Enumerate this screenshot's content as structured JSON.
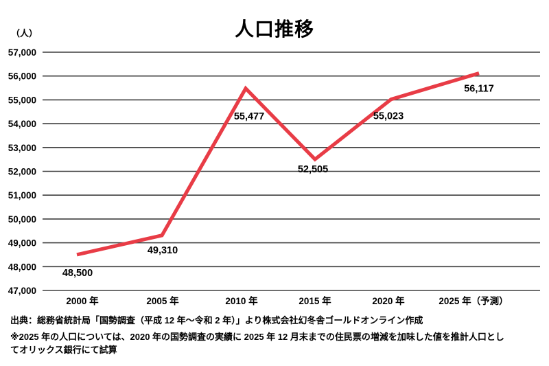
{
  "chart_data": {
    "type": "line",
    "title": "人口推移",
    "ylabel_unit": "（人）",
    "xlabel": "",
    "categories": [
      "2000 年",
      "2005 年",
      "2010 年",
      "2015 年",
      "2020 年",
      "2025 年（予測）"
    ],
    "values": [
      48500,
      49310,
      55477,
      52505,
      55023,
      56117
    ],
    "data_labels": [
      "48,500",
      "49,310",
      "55,477",
      "52,505",
      "55,023",
      "56,117"
    ],
    "ylim": [
      47000,
      57000
    ],
    "ytick_step": 1000,
    "ytick_labels": [
      "57,000",
      "56,000",
      "55,000",
      "54,000",
      "53,000",
      "52,000",
      "51,000",
      "50,000",
      "49,000",
      "48,000",
      "47,000"
    ],
    "grid": true,
    "legend_position": "none",
    "line_color": "#e83c46",
    "grid_color": "#3f3f3f",
    "text_color": "#000000"
  },
  "footnotes": {
    "source": "出典：総務省統計局「国勢調査（平成 12 年～令和 2 年）」より株式会社幻冬舎ゴールドオンライン作成",
    "note": "※2025 年の人口については、2020 年の国勢調査の実績に 2025 年 12 月末までの住民票の増減を加味した値を推計人口としてオリックス銀行にて試算"
  }
}
